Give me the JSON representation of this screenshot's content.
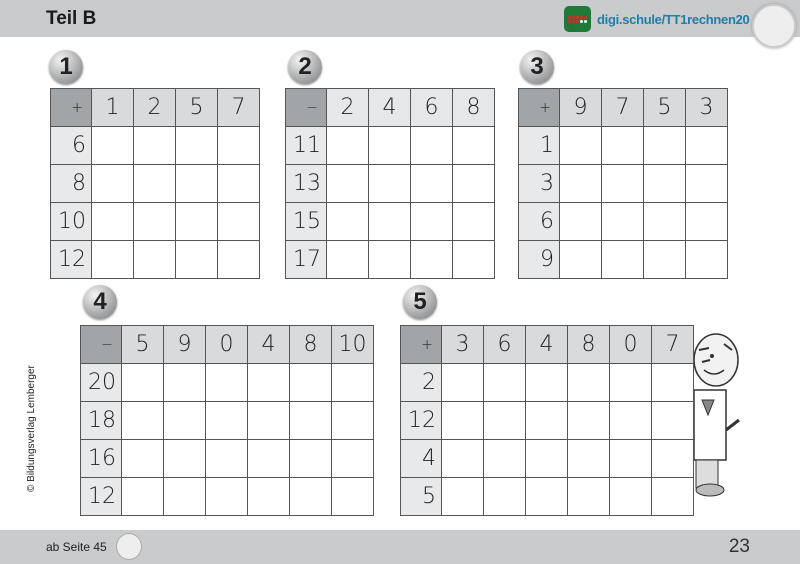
{
  "header": {
    "title": "Teil B",
    "link": "digi.schule/TT1rechnen20",
    "app_icon": "abacus-app-icon",
    "accent": "#1e7fa8"
  },
  "tasks": [
    {
      "number": "1",
      "op": "+",
      "cols": [
        "1",
        "2",
        "5",
        "7"
      ],
      "rows": [
        "6",
        "8",
        "10",
        "12"
      ]
    },
    {
      "number": "2",
      "op": "−",
      "cols": [
        "2",
        "4",
        "6",
        "8"
      ],
      "rows": [
        "11",
        "13",
        "15",
        "17"
      ]
    },
    {
      "number": "3",
      "op": "+",
      "cols": [
        "9",
        "7",
        "5",
        "3"
      ],
      "rows": [
        "1",
        "3",
        "6",
        "9"
      ]
    },
    {
      "number": "4",
      "op": "−",
      "cols": [
        "5",
        "9",
        "0",
        "4",
        "8",
        "10"
      ],
      "rows": [
        "20",
        "18",
        "16",
        "12"
      ]
    },
    {
      "number": "5",
      "op": "+",
      "cols": [
        "3",
        "6",
        "4",
        "8",
        "0",
        "7"
      ],
      "rows": [
        "2",
        "12",
        "4",
        "5"
      ]
    }
  ],
  "copyright": "© Bildungsverlag Lemberger",
  "footer": {
    "from": "ab Seite 45",
    "page": "23"
  }
}
